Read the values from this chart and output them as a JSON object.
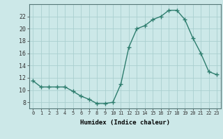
{
  "x": [
    0,
    1,
    2,
    3,
    4,
    5,
    6,
    7,
    8,
    9,
    10,
    11,
    12,
    13,
    14,
    15,
    16,
    17,
    18,
    19,
    20,
    21,
    22,
    23
  ],
  "y": [
    11.5,
    10.5,
    10.5,
    10.5,
    10.5,
    9.8,
    9.0,
    8.5,
    7.8,
    7.8,
    8.0,
    11.0,
    17.0,
    20.0,
    20.5,
    21.5,
    22.0,
    23.0,
    23.0,
    21.5,
    18.5,
    16.0,
    13.0,
    12.5
  ],
  "xlabel": "Humidex (Indice chaleur)",
  "ylim": [
    7,
    24
  ],
  "xlim": [
    -0.5,
    23.5
  ],
  "yticks": [
    8,
    10,
    12,
    14,
    16,
    18,
    20,
    22
  ],
  "xticks": [
    0,
    1,
    2,
    3,
    4,
    5,
    6,
    7,
    8,
    9,
    10,
    11,
    12,
    13,
    14,
    15,
    16,
    17,
    18,
    19,
    20,
    21,
    22,
    23
  ],
  "xtick_labels": [
    "0",
    "1",
    "2",
    "3",
    "4",
    "5",
    "6",
    "7",
    "8",
    "9",
    "10",
    "11",
    "12",
    "13",
    "14",
    "15",
    "16",
    "17",
    "18",
    "19",
    "20",
    "21",
    "22",
    "23"
  ],
  "line_color": "#2e7d6e",
  "marker_color": "#2e7d6e",
  "bg_color": "#cce8e8",
  "grid_color": "#aacfcf",
  "fig_bg": "#cce8e8"
}
